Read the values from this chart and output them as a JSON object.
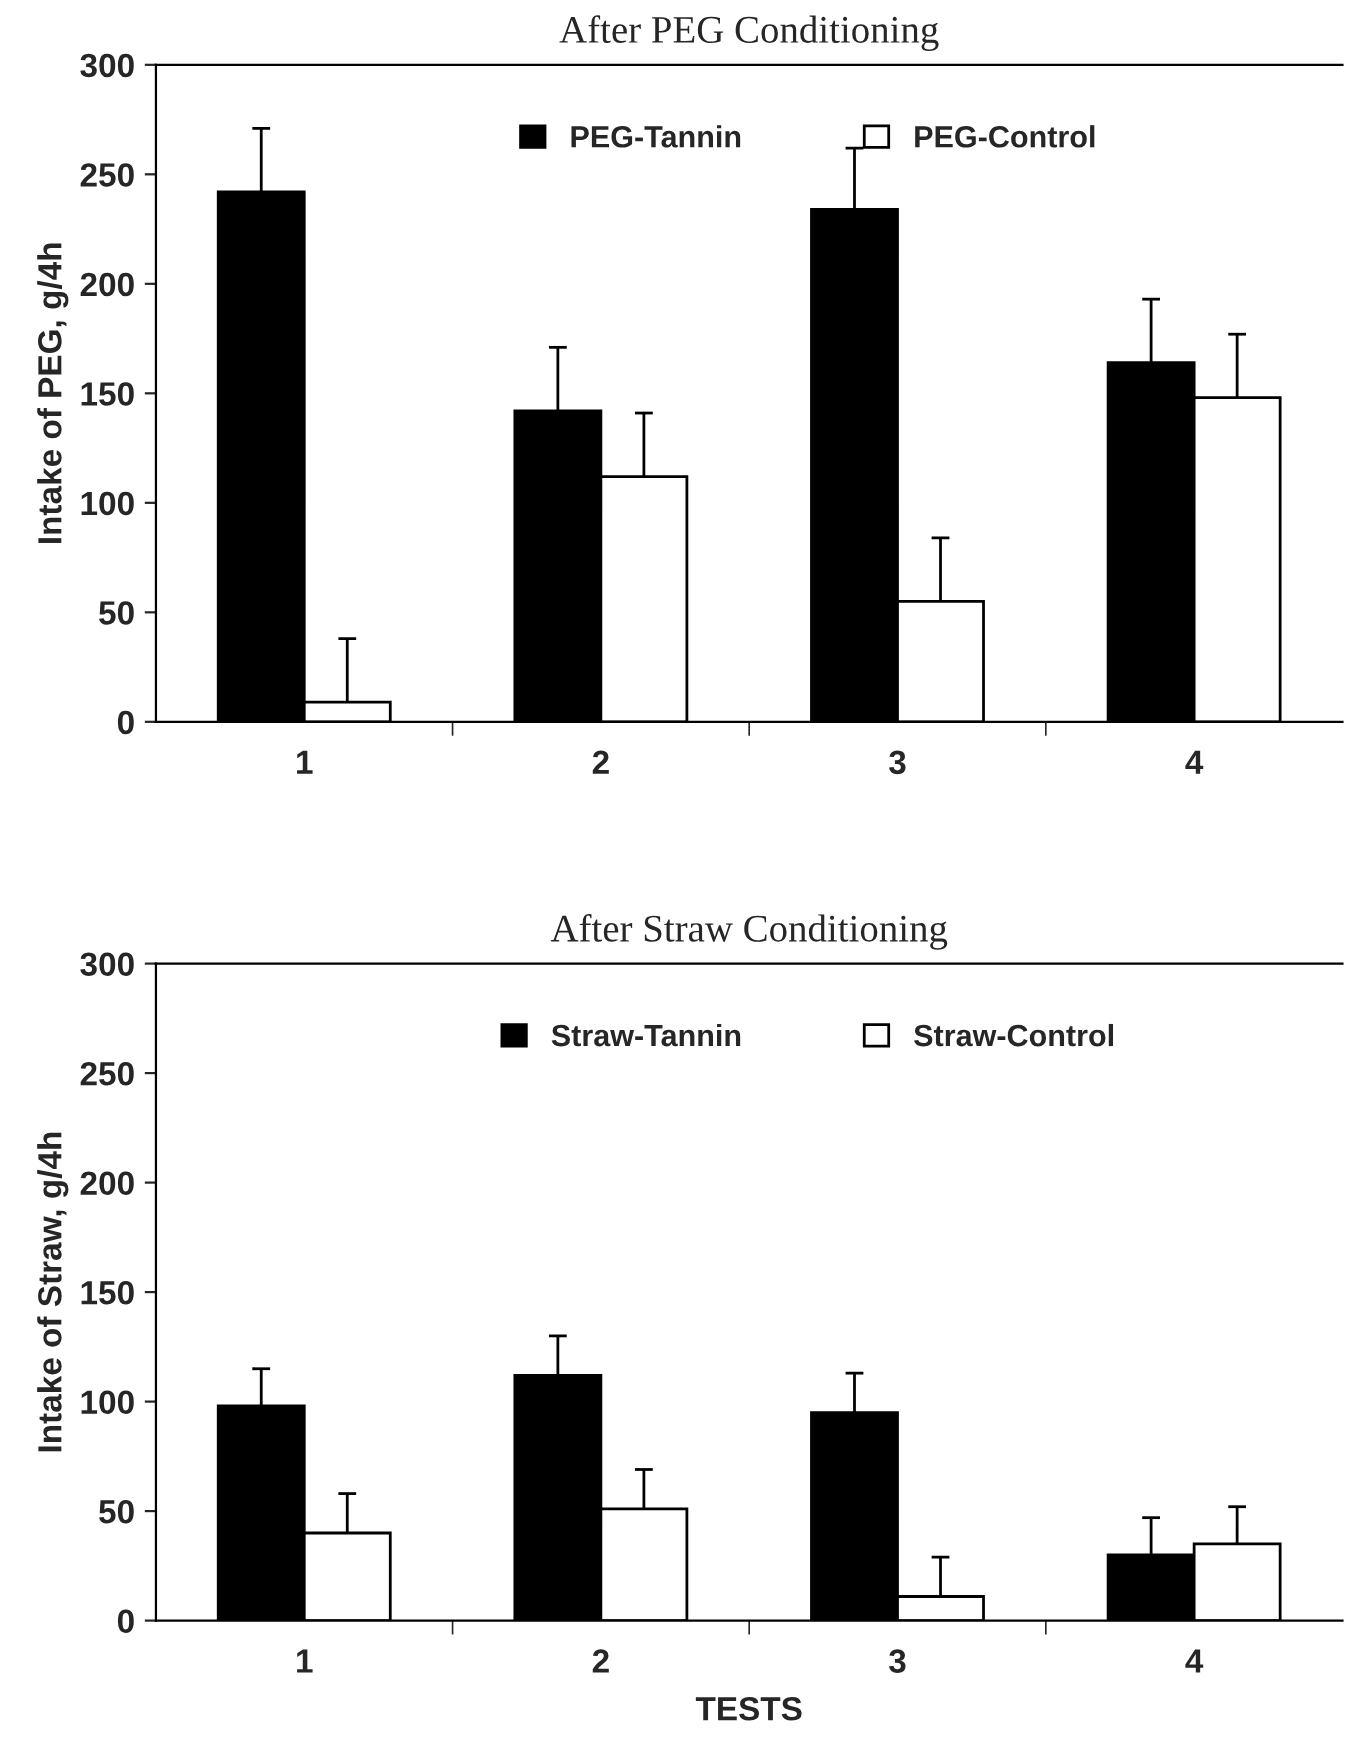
{
  "chart_data": [
    {
      "type": "bar",
      "title": "After PEG Conditioning",
      "ylabel": "Intake of PEG, g/4h",
      "categories": [
        "1",
        "2",
        "3",
        "4"
      ],
      "ylim": [
        0,
        300
      ],
      "yticks": [
        0,
        50,
        100,
        150,
        200,
        250,
        300
      ],
      "grid": false,
      "legend": "top",
      "series": [
        {
          "name": "PEG-Tannin",
          "color": "#000000",
          "values": [
            242,
            142,
            234,
            164
          ],
          "errors": [
            [
              242,
              271
            ],
            [
              142,
              171
            ],
            [
              234,
              262
            ],
            [
              164,
              193
            ]
          ]
        },
        {
          "name": "PEG-Control",
          "color": "#ffffff",
          "values": [
            9,
            112,
            55,
            148
          ],
          "errors": [
            [
              9,
              38
            ],
            [
              112,
              141
            ],
            [
              55,
              84
            ],
            [
              148,
              177
            ]
          ]
        }
      ]
    },
    {
      "type": "bar",
      "title": "After Straw Conditioning",
      "ylabel": "Intake of Straw, g/4h",
      "xlabel": "TESTS",
      "categories": [
        "1",
        "2",
        "3",
        "4"
      ],
      "ylim": [
        0,
        300
      ],
      "yticks": [
        0,
        50,
        100,
        150,
        200,
        250,
        300
      ],
      "grid": false,
      "legend": "top",
      "series": [
        {
          "name": "Straw-Tannin",
          "color": "#000000",
          "values": [
            98,
            112,
            95,
            30
          ],
          "errors": [
            [
              98,
              115
            ],
            [
              112,
              130
            ],
            [
              95,
              113
            ],
            [
              30,
              47
            ]
          ]
        },
        {
          "name": "Straw-Control",
          "color": "#ffffff",
          "values": [
            40,
            51,
            11,
            35
          ],
          "errors": [
            [
              40,
              58
            ],
            [
              51,
              69
            ],
            [
              11,
              29
            ],
            [
              35,
              52
            ]
          ]
        }
      ]
    }
  ]
}
